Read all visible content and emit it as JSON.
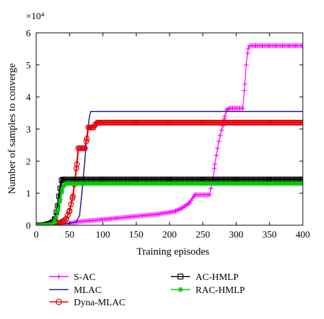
{
  "chart_data": {
    "type": "line",
    "title": "",
    "xlabel": "Training episodes",
    "ylabel": "Number of samples to converge",
    "y_multiplier": "×10⁴",
    "xlim": [
      0,
      400
    ],
    "ylim": [
      0,
      6
    ],
    "xticks": [
      0,
      50,
      100,
      150,
      200,
      250,
      300,
      350,
      400
    ],
    "yticks": [
      0,
      1,
      2,
      3,
      4,
      5,
      6
    ],
    "grid": false,
    "legend_placement": "bottom",
    "series": [
      {
        "name": "S-AC",
        "color": "#ff00ff",
        "marker": "plus",
        "x": [
          0,
          30,
          45,
          60,
          80,
          100,
          120,
          140,
          160,
          180,
          200,
          210,
          220,
          230,
          238,
          240,
          260,
          265,
          268,
          272,
          276,
          280,
          283,
          286,
          290,
          295,
          300,
          305,
          310,
          313,
          315,
          318,
          320,
          330,
          340,
          350,
          360,
          370,
          380,
          390,
          400
        ],
        "y": [
          0,
          0.02,
          0.05,
          0.1,
          0.14,
          0.18,
          0.22,
          0.26,
          0.3,
          0.34,
          0.4,
          0.45,
          0.55,
          0.7,
          0.95,
          0.95,
          0.95,
          1.4,
          1.9,
          2.4,
          2.8,
          3.1,
          3.4,
          3.6,
          3.65,
          3.65,
          3.65,
          3.65,
          3.65,
          4.4,
          5.0,
          5.5,
          5.6,
          5.6,
          5.6,
          5.6,
          5.6,
          5.6,
          5.6,
          5.6,
          5.6
        ]
      },
      {
        "name": "MLAC",
        "color": "#1a1a8c",
        "marker": "none",
        "x": [
          0,
          30,
          50,
          60,
          65,
          68,
          72,
          76,
          80,
          82,
          100,
          150,
          200,
          250,
          300,
          350,
          400
        ],
        "y": [
          0,
          0.03,
          0.06,
          0.1,
          0.3,
          0.9,
          1.8,
          2.8,
          3.4,
          3.55,
          3.55,
          3.55,
          3.55,
          3.55,
          3.55,
          3.55,
          3.55
        ]
      },
      {
        "name": "Dyna-MLAC",
        "color": "#e60000",
        "marker": "circle",
        "x": [
          0,
          10,
          20,
          30,
          35,
          40,
          45,
          50,
          55,
          58,
          61,
          63,
          65,
          70,
          73,
          76,
          78,
          80,
          83,
          86,
          89,
          92,
          96,
          100,
          120,
          150,
          200,
          250,
          300,
          350,
          400
        ],
        "y": [
          0,
          0,
          0.02,
          0.05,
          0.08,
          0.12,
          0.2,
          0.45,
          0.9,
          1.4,
          1.9,
          2.4,
          2.4,
          2.4,
          2.4,
          2.7,
          3.05,
          3.05,
          3.05,
          3.05,
          3.15,
          3.2,
          3.2,
          3.2,
          3.2,
          3.2,
          3.2,
          3.2,
          3.2,
          3.2,
          3.2
        ]
      },
      {
        "name": "AC-HMLP",
        "color": "#000000",
        "marker": "square",
        "x": [
          0,
          10,
          20,
          25,
          28,
          30,
          32,
          34,
          36,
          38,
          40,
          60,
          100,
          150,
          200,
          250,
          300,
          350,
          400
        ],
        "y": [
          0,
          0,
          0.05,
          0.1,
          0.2,
          0.4,
          0.6,
          0.9,
          1.15,
          1.4,
          1.43,
          1.43,
          1.43,
          1.43,
          1.43,
          1.43,
          1.43,
          1.43,
          1.43
        ]
      },
      {
        "name": "RAC-HMLP",
        "color": "#00cc00",
        "marker": "star",
        "x": [
          0,
          10,
          20,
          25,
          28,
          30,
          33,
          36,
          39,
          42,
          45,
          60,
          100,
          150,
          200,
          250,
          300,
          350,
          400
        ],
        "y": [
          0,
          0,
          0.02,
          0.05,
          0.12,
          0.25,
          0.5,
          0.8,
          1.1,
          1.25,
          1.3,
          1.3,
          1.3,
          1.3,
          1.3,
          1.3,
          1.3,
          1.3,
          1.3
        ]
      }
    ]
  }
}
